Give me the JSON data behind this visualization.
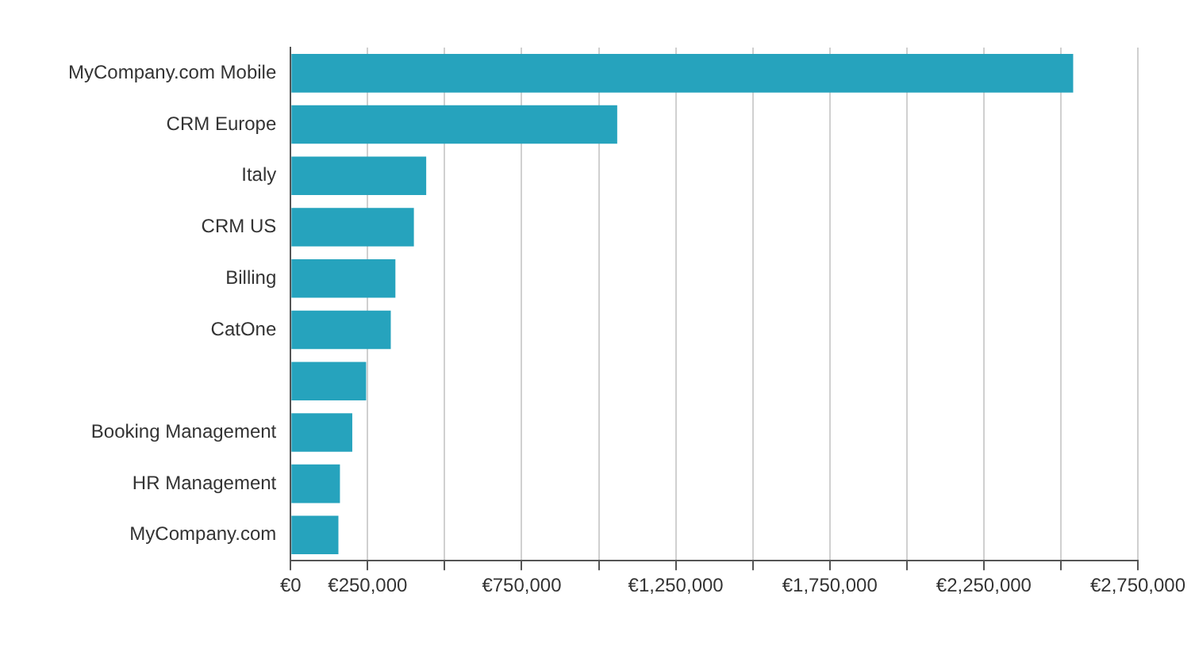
{
  "chart_data": {
    "type": "bar",
    "orientation": "horizontal",
    "categories": [
      "MyCompany.com Mobile",
      "CRM Europe",
      "Italy",
      "CRM US",
      "Billing",
      "CatOne",
      null,
      "Booking Management",
      "HR Management",
      "MyCompany.com"
    ],
    "values": [
      2540000,
      1060000,
      440000,
      400000,
      340000,
      325000,
      245000,
      200000,
      160000,
      155000
    ],
    "color": "#26a3bd",
    "xlim": [
      0,
      2750000
    ],
    "xticks": [
      {
        "value": 0,
        "label": "€0"
      },
      {
        "value": 250000,
        "label": "€250,000"
      },
      {
        "value": 500000,
        "label": null
      },
      {
        "value": 750000,
        "label": "€750,000"
      },
      {
        "value": 1000000,
        "label": null
      },
      {
        "value": 1250000,
        "label": "€1,250,000"
      },
      {
        "value": 1500000,
        "label": null
      },
      {
        "value": 1750000,
        "label": "€1,750,000"
      },
      {
        "value": 2000000,
        "label": null
      },
      {
        "value": 2250000,
        "label": "€2,250,000"
      },
      {
        "value": 2500000,
        "label": null
      },
      {
        "value": 2750000,
        "label": "€2,750,000"
      }
    ],
    "grid": "x"
  }
}
